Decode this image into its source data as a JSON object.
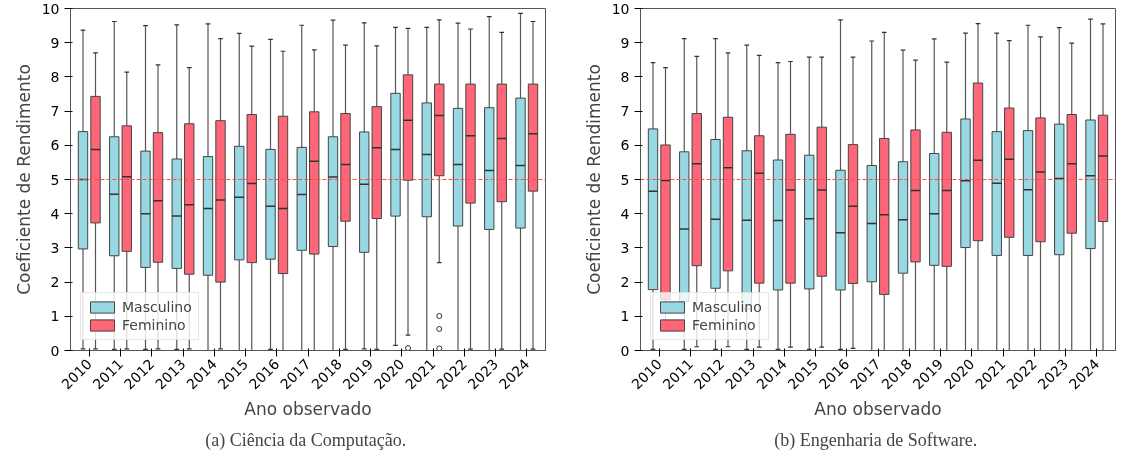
{
  "chart_data": [
    {
      "type": "box",
      "ylabel": "Coeficiente de Rendimento",
      "xlabel": "Ano observado",
      "annotations": [
        "(a)  Ciência da Computação."
      ],
      "categories": [
        "2010",
        "2011",
        "2012",
        "2013",
        "2014",
        "2015",
        "2016",
        "2017",
        "2018",
        "2019",
        "2020",
        "2021",
        "2022",
        "2023",
        "2024"
      ],
      "ylim": [
        0,
        10
      ],
      "yticks": [
        0,
        1,
        2,
        3,
        4,
        5,
        6,
        7,
        8,
        9,
        10
      ],
      "grid": false,
      "legend": "bottom left",
      "ref_lines": [
        {
          "axis": "y",
          "value": 5,
          "color": "#ff4d4d",
          "line_style": "dashed"
        }
      ],
      "series": [
        {
          "name": "Masculino",
          "color": "#97d8e2",
          "boxes": [
            {
              "low": 0.05,
              "q1": 2.97,
              "median": 5.0,
              "q3": 6.4,
              "high": 9.37
            },
            {
              "low": 0.03,
              "q1": 2.77,
              "median": 4.57,
              "q3": 6.25,
              "high": 9.62
            },
            {
              "low": 0.03,
              "q1": 2.43,
              "median": 4.0,
              "q3": 5.83,
              "high": 9.5
            },
            {
              "low": 0.03,
              "q1": 2.4,
              "median": 3.93,
              "q3": 5.6,
              "high": 9.52
            },
            {
              "low": 0.0,
              "q1": 2.2,
              "median": 4.15,
              "q3": 5.67,
              "high": 9.55
            },
            {
              "low": 0.0,
              "q1": 2.65,
              "median": 4.48,
              "q3": 5.97,
              "high": 9.27
            },
            {
              "low": 0.03,
              "q1": 2.67,
              "median": 4.22,
              "q3": 5.88,
              "high": 9.1
            },
            {
              "low": 0.0,
              "q1": 2.93,
              "median": 4.56,
              "q3": 5.94,
              "high": 9.51
            },
            {
              "low": 0.0,
              "q1": 3.04,
              "median": 5.07,
              "q3": 6.25,
              "high": 9.66
            },
            {
              "low": 0.05,
              "q1": 2.87,
              "median": 4.86,
              "q3": 6.39,
              "high": 9.58
            },
            {
              "low": 0.15,
              "q1": 3.93,
              "median": 5.88,
              "q3": 7.52,
              "high": 9.45
            },
            {
              "low": 0.0,
              "q1": 3.91,
              "median": 5.73,
              "q3": 7.24,
              "high": 9.45
            },
            {
              "low": 0.0,
              "q1": 3.64,
              "median": 5.44,
              "q3": 7.08,
              "high": 9.57
            },
            {
              "low": 0.0,
              "q1": 3.54,
              "median": 5.26,
              "q3": 7.1,
              "high": 9.76
            },
            {
              "low": 0.0,
              "q1": 3.58,
              "median": 5.41,
              "q3": 7.38,
              "high": 9.86
            }
          ]
        },
        {
          "name": "Feminino",
          "color": "#ff6678",
          "boxes": [
            {
              "low": 0.05,
              "q1": 3.73,
              "median": 5.88,
              "q3": 7.43,
              "high": 8.7
            },
            {
              "low": 0.05,
              "q1": 2.9,
              "median": 5.08,
              "q3": 6.57,
              "high": 8.14
            },
            {
              "low": 0.05,
              "q1": 2.58,
              "median": 4.38,
              "q3": 6.37,
              "high": 8.35
            },
            {
              "low": 0.05,
              "q1": 2.23,
              "median": 4.26,
              "q3": 6.63,
              "high": 8.27
            },
            {
              "low": 0.05,
              "q1": 2.0,
              "median": 4.4,
              "q3": 6.72,
              "high": 9.12
            },
            {
              "low": 0.0,
              "q1": 2.57,
              "median": 4.88,
              "q3": 6.9,
              "high": 8.9
            },
            {
              "low": 0.0,
              "q1": 2.25,
              "median": 4.15,
              "q3": 6.85,
              "high": 8.75
            },
            {
              "low": 0.0,
              "q1": 2.82,
              "median": 5.53,
              "q3": 6.98,
              "high": 8.79
            },
            {
              "low": 0.03,
              "q1": 3.78,
              "median": 5.44,
              "q3": 6.93,
              "high": 8.93
            },
            {
              "low": 0.03,
              "q1": 3.86,
              "median": 5.93,
              "q3": 7.13,
              "high": 8.91
            },
            {
              "low": 0.45,
              "q1": 4.98,
              "median": 6.73,
              "q3": 8.06,
              "high": 9.42,
              "outliers": [
                0.07
              ]
            },
            {
              "low": 2.57,
              "q1": 5.11,
              "median": 6.87,
              "q3": 7.79,
              "high": 9.67,
              "outliers": [
                1.01,
                0.63,
                0.06
              ]
            },
            {
              "low": 0.04,
              "q1": 4.31,
              "median": 6.28,
              "q3": 7.79,
              "high": 9.4
            },
            {
              "low": 0.04,
              "q1": 4.35,
              "median": 6.2,
              "q3": 7.79,
              "high": 9.3
            },
            {
              "low": 0.04,
              "q1": 4.66,
              "median": 6.34,
              "q3": 7.79,
              "high": 9.62
            }
          ]
        }
      ]
    },
    {
      "type": "box",
      "ylabel": "Coeficiente de Rendimento",
      "xlabel": "Ano observado",
      "annotations": [
        "(b)  Engenharia de Software."
      ],
      "categories": [
        "2010",
        "2011",
        "2012",
        "2013",
        "2014",
        "2015",
        "2016",
        "2017",
        "2018",
        "2019",
        "2020",
        "2021",
        "2022",
        "2023",
        "2024"
      ],
      "ylim": [
        0,
        10
      ],
      "yticks": [
        0,
        1,
        2,
        3,
        4,
        5,
        6,
        7,
        8,
        9,
        10
      ],
      "grid": false,
      "legend": "bottom left",
      "ref_lines": [
        {
          "axis": "y",
          "value": 5,
          "color": "#ff4d4d",
          "line_style": "dashed"
        }
      ],
      "series": [
        {
          "name": "Masculino",
          "color": "#97d8e2",
          "boxes": [
            {
              "low": 0.03,
              "q1": 1.78,
              "median": 4.66,
              "q3": 6.48,
              "high": 8.42
            },
            {
              "low": 0.03,
              "q1": 1.44,
              "median": 3.55,
              "q3": 5.81,
              "high": 9.12
            },
            {
              "low": 0.03,
              "q1": 1.82,
              "median": 3.84,
              "q3": 6.17,
              "high": 9.12
            },
            {
              "low": 0.03,
              "q1": 1.2,
              "median": 3.81,
              "q3": 5.84,
              "high": 8.93
            },
            {
              "low": 0.03,
              "q1": 1.77,
              "median": 3.8,
              "q3": 5.57,
              "high": 8.42
            },
            {
              "low": 0.03,
              "q1": 1.8,
              "median": 3.85,
              "q3": 5.71,
              "high": 8.58
            },
            {
              "low": 0.03,
              "q1": 1.77,
              "median": 3.44,
              "q3": 5.27,
              "high": 9.67
            },
            {
              "low": 0.0,
              "q1": 2.01,
              "median": 3.71,
              "q3": 5.41,
              "high": 9.05
            },
            {
              "low": 0.0,
              "q1": 2.26,
              "median": 3.82,
              "q3": 5.52,
              "high": 8.78
            },
            {
              "low": 0.0,
              "q1": 2.49,
              "median": 4.0,
              "q3": 5.76,
              "high": 9.11
            },
            {
              "low": 0.0,
              "q1": 3.01,
              "median": 4.96,
              "q3": 6.77,
              "high": 9.28
            },
            {
              "low": 0.0,
              "q1": 2.78,
              "median": 4.89,
              "q3": 6.4,
              "high": 9.28
            },
            {
              "low": 0.0,
              "q1": 2.78,
              "median": 4.7,
              "q3": 6.43,
              "high": 9.51
            },
            {
              "low": 0.0,
              "q1": 2.8,
              "median": 5.03,
              "q3": 6.62,
              "high": 9.44
            },
            {
              "low": 0.0,
              "q1": 2.98,
              "median": 5.11,
              "q3": 6.74,
              "high": 9.69
            }
          ]
        },
        {
          "name": "Feminino",
          "color": "#ff6678",
          "boxes": [
            {
              "low": 0.89,
              "q1": 1.49,
              "median": 4.97,
              "q3": 6.01,
              "high": 8.27
            },
            {
              "low": 0.11,
              "q1": 2.48,
              "median": 5.46,
              "q3": 6.93,
              "high": 8.6
            },
            {
              "low": 0.11,
              "q1": 2.33,
              "median": 5.34,
              "q3": 6.82,
              "high": 8.7
            },
            {
              "low": 0.1,
              "q1": 1.97,
              "median": 5.18,
              "q3": 6.28,
              "high": 8.63
            },
            {
              "low": 0.1,
              "q1": 1.97,
              "median": 4.69,
              "q3": 6.32,
              "high": 8.45
            },
            {
              "low": 0.1,
              "q1": 2.17,
              "median": 4.69,
              "q3": 6.53,
              "high": 8.58
            },
            {
              "low": 0.06,
              "q1": 1.96,
              "median": 4.22,
              "q3": 6.02,
              "high": 8.58
            },
            {
              "low": 0.0,
              "q1": 1.64,
              "median": 3.97,
              "q3": 6.2,
              "high": 9.3
            },
            {
              "low": 0.0,
              "q1": 2.59,
              "median": 4.68,
              "q3": 6.45,
              "high": 8.49
            },
            {
              "low": 0.0,
              "q1": 2.46,
              "median": 4.68,
              "q3": 6.38,
              "high": 8.43
            },
            {
              "low": 0.0,
              "q1": 3.21,
              "median": 5.56,
              "q3": 7.82,
              "high": 9.56
            },
            {
              "low": 0.0,
              "q1": 3.31,
              "median": 5.59,
              "q3": 7.09,
              "high": 9.06
            },
            {
              "low": 0.0,
              "q1": 3.18,
              "median": 5.22,
              "q3": 6.8,
              "high": 9.17
            },
            {
              "low": 0.0,
              "q1": 3.43,
              "median": 5.46,
              "q3": 6.9,
              "high": 8.99
            },
            {
              "low": 0.0,
              "q1": 3.77,
              "median": 5.69,
              "q3": 6.88,
              "high": 9.55
            }
          ]
        }
      ]
    }
  ]
}
